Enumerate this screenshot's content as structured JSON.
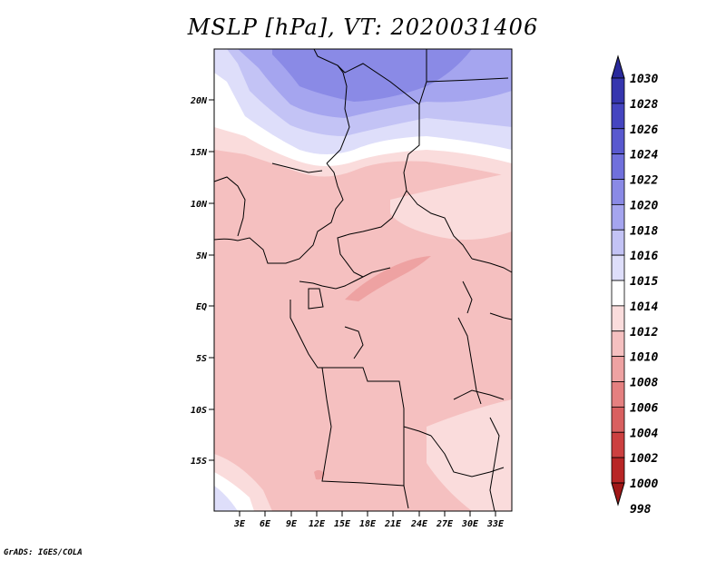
{
  "title": "MSLP [hPa], VT: 2020031406",
  "footer": "GrADS: IGES/COLA",
  "axes": {
    "lat_labels": [
      "20N",
      "15N",
      "10N",
      "5N",
      "EQ",
      "5S",
      "10S",
      "15S"
    ],
    "lon_labels": [
      "3E",
      "6E",
      "9E",
      "12E",
      "15E",
      "18E",
      "21E",
      "24E",
      "27E",
      "30E",
      "33E"
    ]
  },
  "colorbar": {
    "levels": [
      "1030",
      "1028",
      "1026",
      "1024",
      "1022",
      "1020",
      "1018",
      "1016",
      "1015",
      "1014",
      "1012",
      "1010",
      "1008",
      "1006",
      "1004",
      "1002",
      "1000",
      "998"
    ],
    "colors": [
      "#2a2a9c",
      "#3636ae",
      "#4545c0",
      "#5959cf",
      "#7070dc",
      "#8a8ae6",
      "#a5a5ef",
      "#c3c3f5",
      "#dedefa",
      "#ffffff",
      "#fadcdc",
      "#f5c0c0",
      "#eea2a2",
      "#e48080",
      "#d86060",
      "#cc4040",
      "#b82626",
      "#a01818"
    ]
  },
  "colors": {
    "ocean_high_pressure": "#8a8ae6",
    "land_low_pressure": "#f5c0c0",
    "border": "#000000"
  }
}
